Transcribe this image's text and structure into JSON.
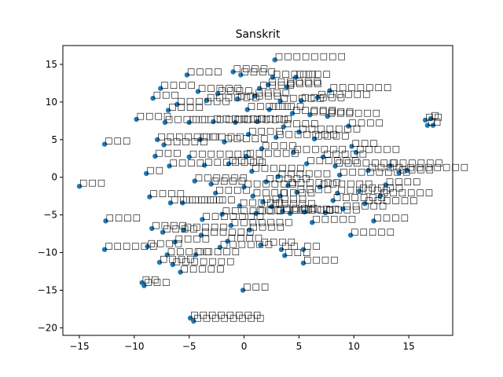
{
  "chart_data": {
    "type": "scatter",
    "title": "Sanskrit",
    "xlabel": "",
    "ylabel": "",
    "xlim": [
      -16.5,
      19
    ],
    "ylim": [
      -21,
      17.5
    ],
    "xticks": [
      -15,
      -10,
      -5,
      0,
      5,
      10,
      15
    ],
    "yticks": [
      -20,
      -15,
      -10,
      -5,
      0,
      5,
      10,
      15
    ],
    "grid": false,
    "marker_color": "#1f77b4",
    "points": [
      {
        "x": -15.0,
        "y": -1.2,
        "label": "□□□"
      },
      {
        "x": -12.7,
        "y": 4.4,
        "label": "□□□"
      },
      {
        "x": -12.6,
        "y": -5.8,
        "label": "□□□□"
      },
      {
        "x": -12.7,
        "y": -9.6,
        "label": "□□□□□□"
      },
      {
        "x": -9.8,
        "y": 7.7,
        "label": "□□□□"
      },
      {
        "x": -9.3,
        "y": -14.0,
        "label": "□□"
      },
      {
        "x": -9.1,
        "y": -14.4,
        "label": "□□□"
      },
      {
        "x": -8.9,
        "y": 0.5,
        "label": "□□"
      },
      {
        "x": -8.6,
        "y": -2.6,
        "label": "□□□□"
      },
      {
        "x": -8.4,
        "y": -6.8,
        "label": "□□□□"
      },
      {
        "x": -8.8,
        "y": -9.2,
        "label": "□□□□"
      },
      {
        "x": -8.3,
        "y": 10.5,
        "label": "□□□"
      },
      {
        "x": -8.1,
        "y": 2.8,
        "label": "□□□"
      },
      {
        "x": -7.9,
        "y": 5.0,
        "label": "□□□□□□□"
      },
      {
        "x": -7.7,
        "y": -11.3,
        "label": "□□□□"
      },
      {
        "x": -7.6,
        "y": 11.8,
        "label": "□□□□"
      },
      {
        "x": -7.3,
        "y": 4.3,
        "label": "□□□□□"
      },
      {
        "x": -7.2,
        "y": 7.3,
        "label": "□□□□□"
      },
      {
        "x": -7.4,
        "y": -7.3,
        "label": "□□□□"
      },
      {
        "x": -7.0,
        "y": -10.3,
        "label": "□□□□□"
      },
      {
        "x": -6.9,
        "y": 8.9,
        "label": "□□□□"
      },
      {
        "x": -6.8,
        "y": 1.5,
        "label": "□□□□"
      },
      {
        "x": -6.7,
        "y": -3.4,
        "label": "□□□□□□"
      },
      {
        "x": -6.5,
        "y": -11.6,
        "label": "□□□□□□□"
      },
      {
        "x": -6.3,
        "y": -8.6,
        "label": "□□□□"
      },
      {
        "x": -6.1,
        "y": 9.7,
        "label": "□□□□□□"
      },
      {
        "x": -5.8,
        "y": -12.6,
        "label": "□□□□□"
      },
      {
        "x": -5.6,
        "y": -3.4,
        "label": "□□□□□□"
      },
      {
        "x": -5.5,
        "y": -7.0,
        "label": "□□□□□"
      },
      {
        "x": -5.2,
        "y": 13.6,
        "label": "□□□□"
      },
      {
        "x": -5.0,
        "y": 7.3,
        "label": "□□□□□□□"
      },
      {
        "x": -5.0,
        "y": 2.7,
        "label": "□□□□□□□"
      },
      {
        "x": -4.9,
        "y": -18.7,
        "label": "□□□□□□□□"
      },
      {
        "x": -4.6,
        "y": -19.1,
        "label": "□□□□□□□□"
      },
      {
        "x": -4.5,
        "y": -0.5,
        "label": "□□□□□□"
      },
      {
        "x": -4.4,
        "y": -10.3,
        "label": "□□□□□"
      },
      {
        "x": -4.2,
        "y": 11.4,
        "label": "□□□□□"
      },
      {
        "x": -4.0,
        "y": 5.0,
        "label": "□□□□□"
      },
      {
        "x": -3.9,
        "y": -7.7,
        "label": "□□□□□□"
      },
      {
        "x": -3.8,
        "y": -5.6,
        "label": "□□□□□□□"
      },
      {
        "x": -3.6,
        "y": 1.6,
        "label": "□□□□□□□"
      },
      {
        "x": -3.4,
        "y": 10.2,
        "label": "□□□□□□"
      },
      {
        "x": -3.0,
        "y": -0.9,
        "label": "□□□□"
      },
      {
        "x": -2.8,
        "y": 7.4,
        "label": "□□□□□□"
      },
      {
        "x": -2.6,
        "y": -2.1,
        "label": "□□□□"
      },
      {
        "x": -2.4,
        "y": 11.1,
        "label": "□□□□"
      },
      {
        "x": -2.2,
        "y": -9.3,
        "label": "□□□□□□"
      },
      {
        "x": -2.0,
        "y": -4.9,
        "label": "□□□□□□□"
      },
      {
        "x": -1.8,
        "y": 4.7,
        "label": "□□□□□"
      },
      {
        "x": -1.5,
        "y": -8.5,
        "label": "□□□□"
      },
      {
        "x": -1.4,
        "y": 1.8,
        "label": "□□□□"
      },
      {
        "x": -1.2,
        "y": -6.4,
        "label": "□□□□□□□"
      },
      {
        "x": -1.0,
        "y": 14.0,
        "label": "□□□□"
      },
      {
        "x": -0.8,
        "y": 7.3,
        "label": "□□□□□□"
      },
      {
        "x": -0.6,
        "y": 10.4,
        "label": "□□□□□"
      },
      {
        "x": -0.4,
        "y": -3.8,
        "label": "□□□□□"
      },
      {
        "x": -0.3,
        "y": 13.6,
        "label": "□□□□"
      },
      {
        "x": -0.1,
        "y": -15.0,
        "label": "□□□"
      },
      {
        "x": 0.0,
        "y": -1.3,
        "label": "□□□□□□"
      },
      {
        "x": 0.2,
        "y": 2.8,
        "label": "□□□□□□"
      },
      {
        "x": 0.3,
        "y": 9.0,
        "label": "□□□□□"
      },
      {
        "x": 0.4,
        "y": 5.7,
        "label": "□□□□"
      },
      {
        "x": 0.5,
        "y": -7.0,
        "label": "□□□□"
      },
      {
        "x": 0.7,
        "y": 0.8,
        "label": "□□□□□□"
      },
      {
        "x": 0.8,
        "y": -2.5,
        "label": "□□□□"
      },
      {
        "x": 1.0,
        "y": 10.8,
        "label": "□□□□"
      },
      {
        "x": 1.1,
        "y": -4.8,
        "label": "□□□□□□"
      },
      {
        "x": 1.2,
        "y": 7.4,
        "label": "□□□□"
      },
      {
        "x": 1.4,
        "y": 11.8,
        "label": "□□□□"
      },
      {
        "x": 1.5,
        "y": -9.0,
        "label": "□□□□"
      },
      {
        "x": 1.6,
        "y": 3.8,
        "label": "□□□□"
      },
      {
        "x": 1.7,
        "y": -3.3,
        "label": "□□□□□"
      },
      {
        "x": 2.0,
        "y": -0.6,
        "label": "□□□□□"
      },
      {
        "x": 2.2,
        "y": 12.3,
        "label": "□□□□□□"
      },
      {
        "x": 2.3,
        "y": 9.0,
        "label": "□□□□"
      },
      {
        "x": 2.5,
        "y": -3.9,
        "label": "□□□□□"
      },
      {
        "x": 2.6,
        "y": 13.3,
        "label": "□□□□□"
      },
      {
        "x": 2.8,
        "y": 15.6,
        "label": "□□□□□□□□"
      },
      {
        "x": 2.9,
        "y": 5.3,
        "label": "□□□□□□□"
      },
      {
        "x": 3.1,
        "y": 0.1,
        "label": "□□□□□□"
      },
      {
        "x": 3.3,
        "y": -2.5,
        "label": "□□□□"
      },
      {
        "x": 3.3,
        "y": 10.1,
        "label": "□□□□□"
      },
      {
        "x": 3.5,
        "y": -4.5,
        "label": "□□□□"
      },
      {
        "x": 3.6,
        "y": 6.7,
        "label": "□□□□"
      },
      {
        "x": 3.4,
        "y": -9.6,
        "label": "□□"
      },
      {
        "x": 3.7,
        "y": -10.4,
        "label": "□□□"
      },
      {
        "x": 3.9,
        "y": 12.0,
        "label": "□□□□"
      },
      {
        "x": 4.0,
        "y": -1.1,
        "label": "□□□□□□"
      },
      {
        "x": 4.2,
        "y": -4.8,
        "label": "□□□□□"
      },
      {
        "x": 4.4,
        "y": 8.5,
        "label": "□□□□□"
      },
      {
        "x": 4.5,
        "y": 3.3,
        "label": "□□□□□□"
      },
      {
        "x": 4.7,
        "y": 13.3,
        "label": "□□□□"
      },
      {
        "x": 4.8,
        "y": -2.0,
        "label": "□□□□"
      },
      {
        "x": 5.0,
        "y": 6.0,
        "label": "□□□□□□□"
      },
      {
        "x": 5.2,
        "y": 10.2,
        "label": "□□□□□"
      },
      {
        "x": 5.4,
        "y": -9.6,
        "label": "□□"
      },
      {
        "x": 5.4,
        "y": -11.4,
        "label": "□□□□"
      },
      {
        "x": 5.5,
        "y": -4.6,
        "label": "□□□□"
      },
      {
        "x": 5.7,
        "y": 1.8,
        "label": "□□□□□□"
      },
      {
        "x": 6.0,
        "y": 8.3,
        "label": "□□□□□"
      },
      {
        "x": 6.2,
        "y": -6.0,
        "label": "□□□□□"
      },
      {
        "x": 6.4,
        "y": 5.1,
        "label": "□□□□"
      },
      {
        "x": 6.7,
        "y": 10.6,
        "label": "□□□□□□"
      },
      {
        "x": 6.9,
        "y": -1.3,
        "label": "□□□□□□"
      },
      {
        "x": 7.2,
        "y": 2.7,
        "label": "□□□□□"
      },
      {
        "x": 7.4,
        "y": -4.7,
        "label": "□□□□"
      },
      {
        "x": 7.6,
        "y": 8.1,
        "label": "□□□□□□"
      },
      {
        "x": 7.8,
        "y": 11.5,
        "label": "□□□□□□□"
      },
      {
        "x": 8.1,
        "y": -3.1,
        "label": "□□□□□□"
      },
      {
        "x": 8.3,
        "y": 1.5,
        "label": "□□□□□□□"
      },
      {
        "x": 8.5,
        "y": -2.1,
        "label": "□□□□□□"
      },
      {
        "x": 8.7,
        "y": 0.3,
        "label": "□□□□□□□□"
      },
      {
        "x": 9.0,
        "y": -4.2,
        "label": "□□□□□"
      },
      {
        "x": 9.5,
        "y": 6.8,
        "label": "□□□□"
      },
      {
        "x": 9.7,
        "y": -7.7,
        "label": "□□□□□"
      },
      {
        "x": 9.8,
        "y": 4.1,
        "label": "□□□"
      },
      {
        "x": 10.2,
        "y": 3.3,
        "label": "□□□□□"
      },
      {
        "x": 10.5,
        "y": -1.8,
        "label": "□□□□□"
      },
      {
        "x": 11.0,
        "y": -3.5,
        "label": "□□□□□□"
      },
      {
        "x": 11.3,
        "y": 0.9,
        "label": "□□□□"
      },
      {
        "x": 11.8,
        "y": -5.8,
        "label": "□□□□"
      },
      {
        "x": 12.4,
        "y": -2.5,
        "label": "□□□□□□"
      },
      {
        "x": 12.9,
        "y": -1.0,
        "label": "□□□□"
      },
      {
        "x": 13.3,
        "y": 1.5,
        "label": "□□□□□□"
      },
      {
        "x": 14.1,
        "y": 0.6,
        "label": "□□□□"
      },
      {
        "x": 14.8,
        "y": 0.9,
        "label": "□□□□□□□"
      },
      {
        "x": 16.5,
        "y": 7.6,
        "label": "□□"
      },
      {
        "x": 16.7,
        "y": 6.9,
        "label": "□"
      },
      {
        "x": 17.0,
        "y": 7.8,
        "label": "□"
      },
      {
        "x": 17.2,
        "y": 6.9,
        "label": "□"
      }
    ]
  }
}
